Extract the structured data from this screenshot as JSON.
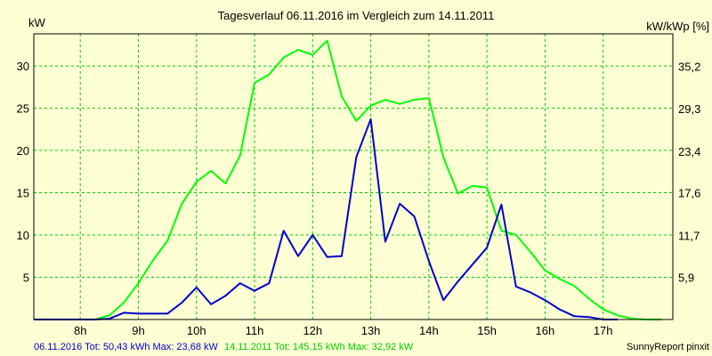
{
  "chart_data": {
    "type": "line",
    "title": "Tagesverlauf 06.11.2016 im Vergleich zum 14.11.2011",
    "ylabel_left": "kW",
    "ylabel_right": "kW/kWp [%]",
    "x_tick_labels": [
      "8h",
      "9h",
      "10h",
      "11h",
      "12h",
      "13h",
      "14h",
      "15h",
      "16h",
      "17h"
    ],
    "x_ticks": [
      8,
      9,
      10,
      11,
      12,
      13,
      14,
      15,
      16,
      17
    ],
    "xlim": [
      7.2,
      18.2
    ],
    "y_ticks": [
      5,
      10,
      15,
      20,
      25,
      30
    ],
    "ylim": [
      0,
      33.8
    ],
    "y2_tick_labels": [
      "5,9",
      "11,7",
      "17,6",
      "23,4",
      "29,3",
      "35,2"
    ],
    "y2_ticks": [
      5.9,
      11.7,
      17.6,
      23.4,
      29.3,
      35.2
    ],
    "y2lim": [
      0,
      39.7
    ],
    "grid": true,
    "series": [
      {
        "name": "06.11.2016",
        "color": "#0000cc",
        "summary": "06.11.2016 Tot: 50,43 kWh Max: 23,68 kW",
        "x": [
          7.2,
          8.0,
          8.25,
          8.5,
          8.75,
          9.0,
          9.25,
          9.5,
          9.75,
          10.0,
          10.25,
          10.5,
          10.75,
          11.0,
          11.25,
          11.5,
          11.75,
          12.0,
          12.25,
          12.5,
          12.75,
          13.0,
          13.25,
          13.5,
          13.75,
          14.0,
          14.25,
          14.5,
          14.75,
          15.0,
          15.25,
          15.5,
          15.75,
          16.0,
          16.25,
          16.5,
          16.75,
          17.0,
          17.25
        ],
        "values": [
          0,
          0,
          0,
          0.1,
          0.8,
          0.7,
          0.7,
          0.7,
          2.0,
          3.8,
          1.8,
          2.8,
          4.3,
          3.4,
          4.3,
          10.5,
          7.5,
          10.0,
          7.4,
          7.5,
          19.2,
          23.7,
          9.2,
          13.7,
          12.2,
          6.9,
          2.3,
          4.5,
          6.5,
          8.5,
          13.6,
          3.9,
          3.2,
          2.3,
          1.2,
          0.4,
          0.3,
          0,
          0
        ]
      },
      {
        "name": "14.11.2011",
        "color": "#00ff00",
        "summary": "14.11.2011 Tot: 145,15 kWh Max: 32,92 kW",
        "x": [
          8.25,
          8.5,
          8.75,
          9.0,
          9.25,
          9.5,
          9.75,
          10.0,
          10.25,
          10.5,
          10.75,
          11.0,
          11.25,
          11.5,
          11.75,
          12.0,
          12.25,
          12.5,
          12.75,
          13.0,
          13.25,
          13.5,
          13.75,
          14.0,
          14.25,
          14.5,
          14.75,
          15.0,
          15.25,
          15.5,
          15.75,
          16.0,
          16.25,
          16.5,
          16.75,
          17.0,
          17.25,
          17.5,
          17.75,
          18.0
        ],
        "values": [
          0,
          0.5,
          2.0,
          4.3,
          7.0,
          9.3,
          13.7,
          16.3,
          17.6,
          16.1,
          19.4,
          28.0,
          29.0,
          31.0,
          31.9,
          31.3,
          33.0,
          26.4,
          23.5,
          25.3,
          26.0,
          25.5,
          26.0,
          26.2,
          19.2,
          14.9,
          15.8,
          15.6,
          10.5,
          10.0,
          8.0,
          5.8,
          4.8,
          4.0,
          2.5,
          1.2,
          0.5,
          0.1,
          0,
          0
        ]
      }
    ],
    "footer_credit": "SunnyReport pinxit"
  }
}
